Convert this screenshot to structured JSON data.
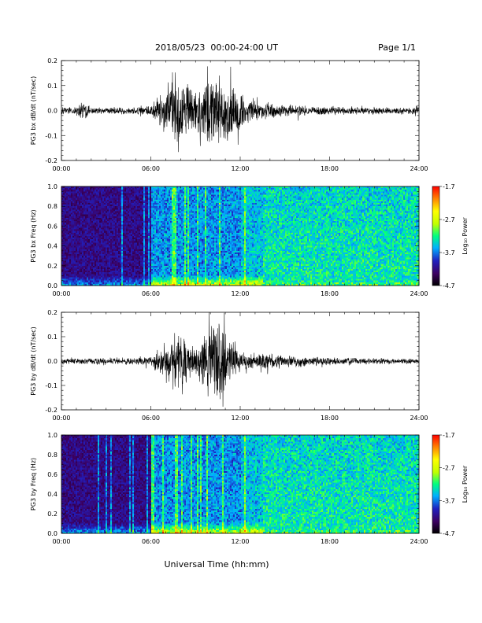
{
  "header": {
    "date_range": "2018/05/23  00:00-24:00 UT",
    "page": "Page 1/1"
  },
  "footer": {
    "xlabel": "Universal Time (hh:mm)"
  },
  "colors": {
    "waveform": "#000000",
    "frame": "#000000",
    "colormap": [
      "#000000",
      "#3c0060",
      "#2020c0",
      "#00b0ff",
      "#00ff80",
      "#c0ff00",
      "#ffff00",
      "#ff8000",
      "#ff0000"
    ]
  },
  "chart_data": [
    {
      "type": "line",
      "ylabel": "PG3 bx dB/dt (nT/sec)",
      "xlim": [
        0,
        24
      ],
      "ylim": [
        -0.2,
        0.2
      ],
      "xticks": [
        "00:00",
        "06:00",
        "12:00",
        "18:00",
        "24:00"
      ],
      "yticks": [
        "0.2",
        "0.1",
        "0.0",
        "-0.1",
        "-0.2"
      ],
      "x_hours": [
        0,
        1,
        1.3,
        2,
        3,
        4,
        5,
        6,
        6.5,
        7,
        7.5,
        8,
        8.5,
        9,
        9.5,
        10,
        10.5,
        11,
        11.5,
        12,
        12.5,
        13,
        13.5,
        14,
        15,
        16,
        17,
        18,
        19,
        20,
        21,
        22,
        23,
        24
      ],
      "amplitude": [
        0.015,
        0.02,
        0.05,
        0.015,
        0.015,
        0.015,
        0.02,
        0.025,
        0.07,
        0.1,
        0.15,
        0.2,
        0.12,
        0.1,
        0.13,
        0.16,
        0.17,
        0.14,
        0.13,
        0.08,
        0.06,
        0.05,
        0.04,
        0.035,
        0.03,
        0.025,
        0.02,
        0.02,
        0.02,
        0.018,
        0.015,
        0.015,
        0.015,
        0.015
      ]
    },
    {
      "type": "heatmap",
      "ylabel": "PG3 bx Freq (Hz)",
      "xlim": [
        0,
        24
      ],
      "ylim": [
        0,
        1
      ],
      "xticks": [
        "00:00",
        "06:00",
        "12:00",
        "18:00",
        "24:00"
      ],
      "yticks": [
        "1.0",
        "0.8",
        "0.6",
        "0.4",
        "0.2",
        "0.0"
      ],
      "colorbar": {
        "label": "Log₁₀ Power",
        "range": [
          -4.7,
          -1.7
        ],
        "ticks": [
          "-1.7",
          "-2.7",
          "-3.7",
          "-4.7"
        ]
      },
      "noise_transition_hour": 13.5,
      "active_interval_hours": [
        6,
        13.5
      ]
    },
    {
      "type": "line",
      "ylabel": "PG3 by dB/dt (nT/sec)",
      "xlim": [
        0,
        24
      ],
      "ylim": [
        -0.2,
        0.2
      ],
      "xticks": [
        "00:00",
        "06:00",
        "12:00",
        "18:00",
        "24:00"
      ],
      "yticks": [
        "0.2",
        "0.1",
        "0.0",
        "-0.1",
        "-0.2"
      ],
      "x_hours": [
        0,
        1,
        2,
        3,
        4,
        5,
        6,
        6.5,
        7,
        7.5,
        8,
        8.5,
        9,
        9.5,
        10,
        10.5,
        11,
        11.5,
        12,
        12.5,
        13,
        13.5,
        14,
        15,
        16,
        17,
        18,
        19,
        20,
        21,
        22,
        23,
        24
      ],
      "amplitude": [
        0.012,
        0.015,
        0.015,
        0.015,
        0.015,
        0.018,
        0.02,
        0.06,
        0.09,
        0.12,
        0.14,
        0.08,
        0.07,
        0.12,
        0.17,
        0.2,
        0.14,
        0.1,
        0.05,
        0.04,
        0.035,
        0.05,
        0.035,
        0.03,
        0.025,
        0.02,
        0.02,
        0.018,
        0.015,
        0.015,
        0.013,
        0.012,
        0.012
      ]
    },
    {
      "type": "heatmap",
      "ylabel": "PG3 by Freq (Hz)",
      "xlim": [
        0,
        24
      ],
      "ylim": [
        0,
        1
      ],
      "xticks": [
        "00:00",
        "06:00",
        "12:00",
        "18:00",
        "24:00"
      ],
      "yticks": [
        "1.0",
        "0.8",
        "0.6",
        "0.4",
        "0.2",
        "0.0"
      ],
      "colorbar": {
        "label": "Log₁₀ Power",
        "range": [
          -4.7,
          -1.7
        ],
        "ticks": [
          "-1.7",
          "-2.7",
          "-3.7",
          "-4.7"
        ]
      },
      "noise_transition_hour": 13.5,
      "active_interval_hours": [
        6,
        13.5
      ]
    }
  ]
}
